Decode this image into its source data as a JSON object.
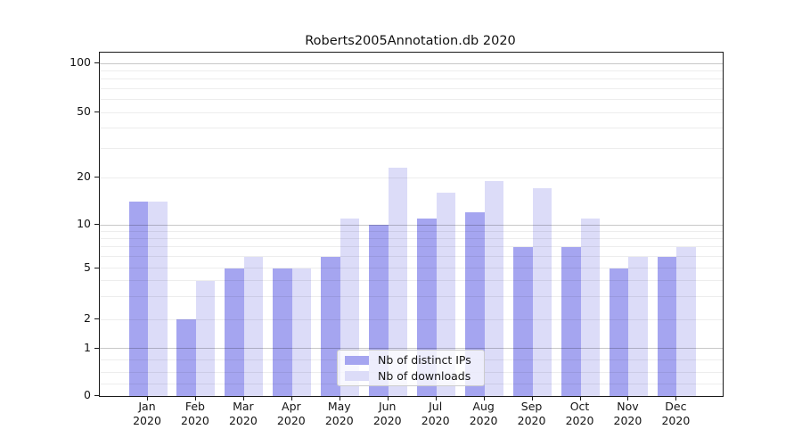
{
  "title": "Roberts2005Annotation.db 2020",
  "legend": {
    "items": [
      {
        "label": "Nb of distinct IPs",
        "color": "#a5a5f0"
      },
      {
        "label": "Nb of downloads",
        "color": "#dcdcf8"
      }
    ]
  },
  "y_axis": {
    "tick_labels": [
      "0",
      "1",
      "2",
      "5",
      "10",
      "20",
      "50",
      "100"
    ],
    "tick_values": [
      0,
      1,
      2,
      5,
      10,
      20,
      50,
      100
    ],
    "major_gridlines": [
      1,
      10,
      100
    ],
    "minor_gridlines": [
      0.25,
      0.5,
      0.75,
      2,
      3,
      4,
      5,
      6,
      7,
      8,
      9,
      20,
      30,
      40,
      50,
      60,
      70,
      80,
      90
    ]
  },
  "x_axis": {
    "months": [
      "Jan",
      "Feb",
      "Mar",
      "Apr",
      "May",
      "Jun",
      "Jul",
      "Aug",
      "Sep",
      "Oct",
      "Nov",
      "Dec"
    ],
    "year": "2020"
  },
  "colors": {
    "ips_bar": "#a5a5f0",
    "downloads_bar": "#dcdcf8",
    "background": "#ffffff"
  },
  "chart_data": {
    "type": "bar",
    "title": "Roberts2005Annotation.db 2020",
    "categories": [
      "Jan 2020",
      "Feb 2020",
      "Mar 2020",
      "Apr 2020",
      "May 2020",
      "Jun 2020",
      "Jul 2020",
      "Aug 2020",
      "Sep 2020",
      "Oct 2020",
      "Nov 2020",
      "Dec 2020"
    ],
    "series": [
      {
        "name": "Nb of distinct IPs",
        "color": "#a5a5f0",
        "values": [
          14,
          2,
          5,
          5,
          6,
          10,
          11,
          12,
          7,
          7,
          5,
          6
        ]
      },
      {
        "name": "Nb of downloads",
        "color": "#dcdcf8",
        "values": [
          14,
          4,
          6,
          5,
          11,
          23,
          16,
          19,
          17,
          11,
          6,
          7
        ]
      }
    ],
    "yscale": "symlog",
    "ylim": [
      0,
      116
    ],
    "yticks": [
      0,
      1,
      2,
      5,
      10,
      20,
      50,
      100
    ],
    "grid": true,
    "legend_position": "lower center"
  }
}
